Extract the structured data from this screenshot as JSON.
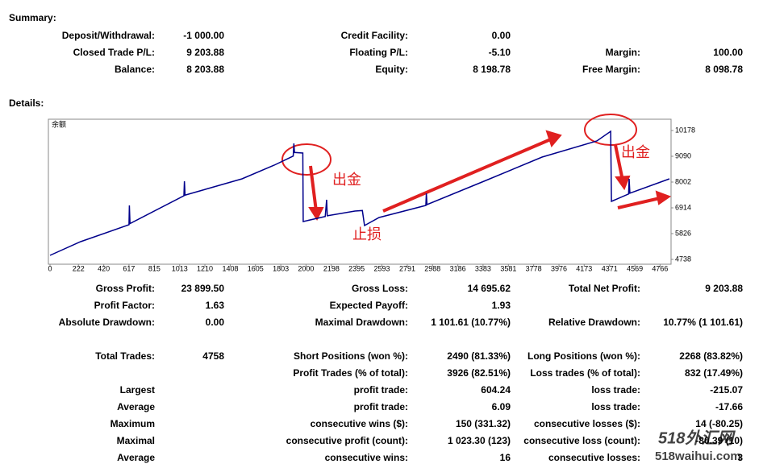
{
  "summary": {
    "title": "Summary:",
    "rows": [
      [
        "Deposit/Withdrawal:",
        "-1 000.00",
        "Credit Facility:",
        "0.00",
        null,
        null
      ],
      [
        "Closed Trade P/L:",
        "9 203.88",
        "Floating P/L:",
        "-5.10",
        "Margin:",
        "100.00"
      ],
      [
        "Balance:",
        "8 203.88",
        "Equity:",
        "8 198.78",
        "Free Margin:",
        "8 098.78"
      ]
    ]
  },
  "details": {
    "title": "Details:",
    "rows": [
      [
        "Gross Profit:",
        "23 899.50",
        "Gross Loss:",
        "14 695.62",
        "Total Net Profit:",
        "9 203.88"
      ],
      [
        "Profit Factor:",
        "1.63",
        "Expected Payoff:",
        "1.93",
        null,
        null
      ],
      [
        "Absolute Drawdown:",
        "0.00",
        "Maximal Drawdown:",
        "1 101.61 (10.77%)",
        "Relative Drawdown:",
        "10.77% (1 101.61)"
      ],
      [
        "Total Trades:",
        "4758",
        "Short Positions (won %):",
        "2490 (81.33%)",
        "Long Positions (won %):",
        "2268 (83.82%)"
      ],
      [
        null,
        null,
        "Profit Trades (% of total):",
        "3926 (82.51%)",
        "Loss trades (% of total):",
        "832 (17.49%)"
      ],
      [
        "Largest",
        null,
        "profit trade:",
        "604.24",
        "loss trade:",
        "-215.07"
      ],
      [
        "Average",
        null,
        "profit trade:",
        "6.09",
        "loss trade:",
        "-17.66"
      ],
      [
        "Maximum",
        null,
        "consecutive wins ($):",
        "150 (331.32)",
        "consecutive losses ($):",
        "14 (-80.25)"
      ],
      [
        "Maximal",
        null,
        "consecutive profit (count):",
        "1 023.30 (123)",
        "consecutive loss (count):",
        "-80.39 (10)"
      ],
      [
        "Average",
        null,
        "consecutive wins:",
        "16",
        "consecutive losses:",
        "3"
      ]
    ]
  },
  "chart_data": {
    "type": "line",
    "title": "余额",
    "x": [
      0,
      239,
      617,
      620,
      625,
      1046,
      1050,
      1055,
      1500,
      1752,
      1900,
      1905,
      1910,
      1975,
      1978,
      2150,
      2161,
      2166,
      2382,
      2440,
      2457,
      2571,
      2936,
      2940,
      2945,
      3390,
      3844,
      4272,
      4380,
      4386,
      4520,
      4524,
      4530,
      4839
    ],
    "series": [
      {
        "name": "余额",
        "color": "#00008b",
        "values": [
          4908,
          5486,
          6200,
          7016,
          6250,
          7424,
          8036,
          7450,
          8138,
          8716,
          9100,
          9634,
          9250,
          9226,
          6336,
          6550,
          7254,
          6580,
          6778,
          6800,
          6166,
          6506,
          7016,
          7526,
          7050,
          8036,
          9056,
          9736,
          10144,
          7186,
          7500,
          8138,
          7530,
          8138
        ]
      }
    ],
    "xlim": [
      0,
      4839
    ],
    "ylim": [
      4534,
      10654
    ],
    "xticks": [
      0,
      222,
      420,
      617,
      815,
      1013,
      1210,
      1408,
      1605,
      1803,
      2000,
      2198,
      2395,
      2593,
      2791,
      2988,
      3186,
      3383,
      3581,
      3778,
      3976,
      4173,
      4371,
      4569,
      4766
    ],
    "yticks": [
      4738,
      5826,
      6914,
      8002,
      9090,
      10178
    ],
    "annotations": [
      "出金",
      "止损",
      "出金"
    ]
  },
  "watermark": [
    "518外汇网",
    "518waihui.com"
  ]
}
